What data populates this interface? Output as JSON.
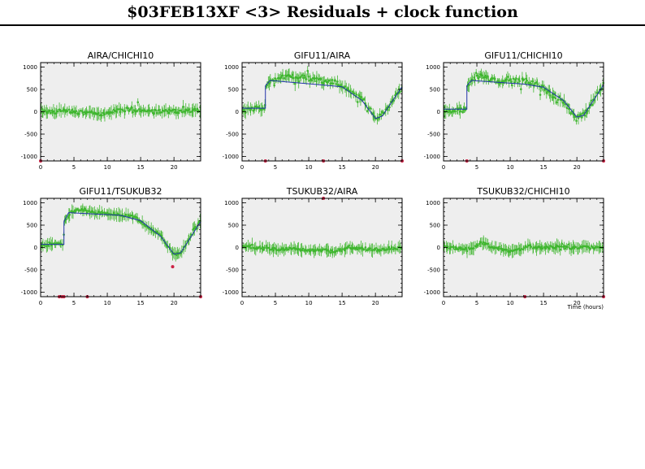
{
  "title": "$03FEB13XF <3> Residuals + clock function",
  "colors": {
    "panel_bg": "#eeeeee",
    "residual_points": "#3fb62f",
    "clock_function": "#2233aa",
    "flagged_points": "#cc2244",
    "frame": "#000000"
  },
  "chart_data": [
    {
      "type": "scatter",
      "title": "AIRA/CHICHI10",
      "xlabel": "",
      "ylabel": "",
      "xlim": [
        0,
        24
      ],
      "ylim": [
        -1100,
        1100
      ],
      "x_ticks": [
        0,
        5,
        10,
        15,
        20
      ],
      "x_tick_labels": [
        "0",
        "5",
        "10",
        "15",
        "20"
      ],
      "y_ticks": [
        -1000,
        -500,
        0,
        500,
        1000
      ],
      "y_tick_labels": [
        "-1000",
        "-500",
        "0",
        "500",
        "1000"
      ],
      "grid": false,
      "series": [
        {
          "role": "residuals",
          "profile": [
            [
              0,
              20
            ],
            [
              2,
              0
            ],
            [
              4,
              30
            ],
            [
              6,
              -20
            ],
            [
              8,
              -40
            ],
            [
              9,
              -60
            ],
            [
              11,
              20
            ],
            [
              13,
              60
            ],
            [
              15,
              40
            ],
            [
              17,
              0
            ],
            [
              19,
              20
            ],
            [
              21,
              10
            ],
            [
              24,
              40
            ]
          ],
          "spread": 45
        },
        {
          "role": "flagged",
          "x": [
            0
          ],
          "y": [
            -1100
          ]
        }
      ]
    },
    {
      "type": "scatter",
      "title": "GIFU11/AIRA",
      "xlabel": "",
      "ylabel": "",
      "xlim": [
        0,
        24
      ],
      "ylim": [
        -1100,
        1100
      ],
      "x_ticks": [
        0,
        5,
        10,
        15,
        20
      ],
      "x_tick_labels": [
        "0",
        "5",
        "10",
        "15",
        "20"
      ],
      "y_ticks": [
        -1000,
        -500,
        0,
        500,
        1000
      ],
      "y_tick_labels": [
        "-1000",
        "-500",
        "0",
        "500",
        "1000"
      ],
      "grid": false,
      "series": [
        {
          "role": "residuals",
          "profile": [
            [
              0,
              0
            ],
            [
              1,
              40
            ],
            [
              2,
              80
            ],
            [
              3.4,
              90
            ],
            [
              3.6,
              600
            ],
            [
              4.5,
              720
            ],
            [
              6,
              770
            ],
            [
              8,
              790
            ],
            [
              10,
              760
            ],
            [
              12,
              680
            ],
            [
              14,
              660
            ],
            [
              15,
              580
            ],
            [
              16,
              450
            ],
            [
              18,
              300
            ],
            [
              19,
              100
            ],
            [
              20,
              -130
            ],
            [
              21,
              -80
            ],
            [
              22,
              100
            ],
            [
              23,
              350
            ],
            [
              24,
              560
            ]
          ],
          "spread": 45
        },
        {
          "role": "clock",
          "x": [
            0,
            3.5,
            3.5,
            4.2,
            12,
            15,
            18,
            20,
            21,
            24
          ],
          "y": [
            80,
            80,
            580,
            700,
            600,
            560,
            250,
            -150,
            -100,
            560
          ]
        },
        {
          "role": "flagged",
          "x": [
            3.5,
            12.2,
            24
          ],
          "y": [
            -1100,
            -1100,
            -1100
          ]
        }
      ]
    },
    {
      "type": "scatter",
      "title": "GIFU11/CHICHI10",
      "xlabel": "",
      "ylabel": "",
      "xlim": [
        0,
        24
      ],
      "ylim": [
        -1100,
        1100
      ],
      "x_ticks": [
        0,
        5,
        10,
        15,
        20
      ],
      "x_tick_labels": [
        "0",
        "5",
        "10",
        "15",
        "20"
      ],
      "y_ticks": [
        -1000,
        -500,
        0,
        500,
        1000
      ],
      "y_tick_labels": [
        "-1000",
        "-500",
        "0",
        "500",
        "1000"
      ],
      "grid": false,
      "series": [
        {
          "role": "residuals",
          "profile": [
            [
              0,
              0
            ],
            [
              1,
              0
            ],
            [
              2,
              40
            ],
            [
              3.4,
              60
            ],
            [
              3.6,
              600
            ],
            [
              5,
              800
            ],
            [
              6,
              780
            ],
            [
              8,
              680
            ],
            [
              10,
              690
            ],
            [
              12,
              710
            ],
            [
              14,
              620
            ],
            [
              15,
              530
            ],
            [
              16,
              400
            ],
            [
              18,
              250
            ],
            [
              19,
              30
            ],
            [
              20,
              -180
            ],
            [
              21,
              -60
            ],
            [
              22,
              100
            ],
            [
              23,
              400
            ],
            [
              24,
              600
            ]
          ],
          "spread": 55
        },
        {
          "role": "clock",
          "x": [
            0,
            3.5,
            3.5,
            4.2,
            12,
            15,
            18,
            20,
            21,
            24
          ],
          "y": [
            60,
            60,
            580,
            700,
            620,
            550,
            250,
            -120,
            -80,
            600
          ]
        },
        {
          "role": "flagged",
          "x": [
            3.5,
            24
          ],
          "y": [
            -1100,
            -1100
          ]
        }
      ]
    },
    {
      "type": "scatter",
      "title": "GIFU11/TSUKUB32",
      "xlabel": "",
      "ylabel": "",
      "xlim": [
        0,
        24
      ],
      "ylim": [
        -1100,
        1100
      ],
      "x_ticks": [
        0,
        5,
        10,
        15,
        20
      ],
      "x_tick_labels": [
        "0",
        "5",
        "10",
        "15",
        "20"
      ],
      "y_ticks": [
        -1000,
        -500,
        0,
        500,
        1000
      ],
      "y_tick_labels": [
        "-1000",
        "-500",
        "0",
        "500",
        "1000"
      ],
      "grid": false,
      "series": [
        {
          "role": "residuals",
          "profile": [
            [
              0,
              30
            ],
            [
              1,
              50
            ],
            [
              2,
              90
            ],
            [
              3.4,
              60
            ],
            [
              3.6,
              580
            ],
            [
              4.5,
              780
            ],
            [
              6,
              860
            ],
            [
              8,
              800
            ],
            [
              10,
              760
            ],
            [
              12,
              730
            ],
            [
              14,
              680
            ],
            [
              15,
              590
            ],
            [
              16,
              460
            ],
            [
              17,
              370
            ],
            [
              18,
              260
            ],
            [
              19,
              50
            ],
            [
              20,
              -150
            ],
            [
              21,
              -120
            ],
            [
              22,
              120
            ],
            [
              23,
              400
            ],
            [
              24,
              600
            ]
          ],
          "spread": 30
        },
        {
          "role": "clock",
          "x": [
            0,
            3.5,
            3.5,
            4.2,
            12,
            15,
            18,
            20,
            21,
            24
          ],
          "y": [
            70,
            70,
            580,
            780,
            720,
            600,
            250,
            -150,
            -120,
            580
          ]
        },
        {
          "role": "flagged",
          "x": [
            2.8,
            3.2,
            3.5,
            7,
            19.8,
            24
          ],
          "y": [
            -1100,
            -1100,
            -1100,
            -1100,
            -430,
            -1100
          ]
        }
      ]
    },
    {
      "type": "scatter",
      "title": "TSUKUB32/AIRA",
      "xlabel": "",
      "ylabel": "",
      "xlim": [
        0,
        24
      ],
      "ylim": [
        -1100,
        1100
      ],
      "x_ticks": [
        0,
        5,
        10,
        15,
        20
      ],
      "x_tick_labels": [
        "0",
        "5",
        "10",
        "15",
        "20"
      ],
      "y_ticks": [
        -1000,
        -500,
        0,
        500,
        1000
      ],
      "y_tick_labels": [
        "-1000",
        "-500",
        "0",
        "500",
        "1000"
      ],
      "grid": false,
      "series": [
        {
          "role": "residuals",
          "profile": [
            [
              0,
              40
            ],
            [
              2,
              0
            ],
            [
              4,
              -30
            ],
            [
              6,
              -40
            ],
            [
              8,
              -20
            ],
            [
              10,
              -60
            ],
            [
              12,
              -50
            ],
            [
              14,
              -80
            ],
            [
              16,
              -20
            ],
            [
              18,
              -30
            ],
            [
              20,
              -50
            ],
            [
              22,
              -20
            ],
            [
              24,
              -10
            ]
          ],
          "spread": 30
        },
        {
          "role": "flagged",
          "x": [
            12.2
          ],
          "y": [
            1100
          ]
        }
      ]
    },
    {
      "type": "scatter",
      "title": "TSUKUB32/CHICHI10",
      "xlabel": "Time (hours)",
      "ylabel": "",
      "xlim": [
        0,
        24
      ],
      "ylim": [
        -1100,
        1100
      ],
      "x_ticks": [
        0,
        5,
        10,
        15,
        20
      ],
      "x_tick_labels": [
        "0",
        "5",
        "10",
        "15",
        "20"
      ],
      "y_ticks": [
        -1000,
        -500,
        0,
        500,
        1000
      ],
      "y_tick_labels": [
        "-1000",
        "-500",
        "0",
        "500",
        "1000"
      ],
      "grid": false,
      "series": [
        {
          "role": "residuals",
          "profile": [
            [
              0,
              0
            ],
            [
              2,
              -20
            ],
            [
              4,
              -30
            ],
            [
              5,
              60
            ],
            [
              6,
              100
            ],
            [
              7,
              20
            ],
            [
              8,
              0
            ],
            [
              10,
              -80
            ],
            [
              11,
              -40
            ],
            [
              13,
              20
            ],
            [
              15,
              0
            ],
            [
              17,
              20
            ],
            [
              19,
              -10
            ],
            [
              21,
              0
            ],
            [
              24,
              0
            ]
          ],
          "spread": 35
        },
        {
          "role": "flagged",
          "x": [
            12.2,
            24
          ],
          "y": [
            -1100,
            -1100
          ]
        }
      ]
    }
  ]
}
